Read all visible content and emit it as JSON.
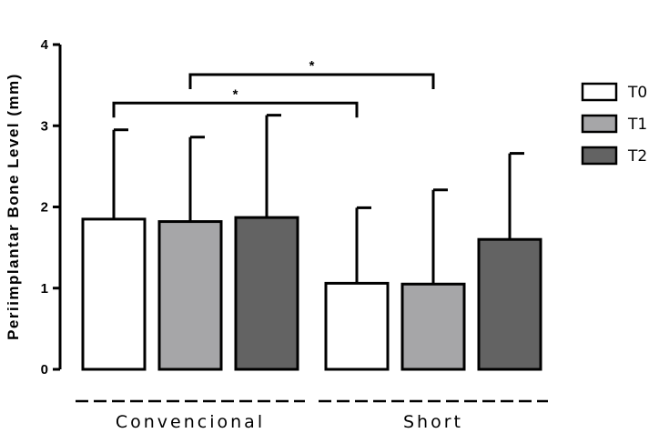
{
  "chart_data": {
    "type": "bar",
    "title": "",
    "xlabel": "",
    "ylabel": "Periimplantar Bone Level (mm)",
    "ylim": [
      0,
      4
    ],
    "yticks": [
      "0",
      "1",
      "2",
      "3",
      "4"
    ],
    "grid": false,
    "legend_position": "right",
    "categories": [
      "Convencional",
      "Short"
    ],
    "series": [
      {
        "name": "T0",
        "values": [
          1.85,
          1.06
        ],
        "errors": [
          1.1,
          0.93
        ],
        "color": "#ffffff"
      },
      {
        "name": "T1",
        "values": [
          1.82,
          1.05
        ],
        "errors": [
          1.04,
          1.16
        ],
        "color": "#a6a6a8"
      },
      {
        "name": "T2",
        "values": [
          1.87,
          1.6
        ],
        "errors": [
          1.26,
          1.06
        ],
        "color": "#636363"
      }
    ],
    "annotations": [
      {
        "label": "*",
        "from": [
          "Convencional",
          "T0"
        ],
        "to": [
          "Short",
          "T0"
        ],
        "y": 3.28
      },
      {
        "label": "*",
        "from": [
          "Convencional",
          "T1"
        ],
        "to": [
          "Short",
          "T1"
        ],
        "y": 3.63
      }
    ]
  }
}
